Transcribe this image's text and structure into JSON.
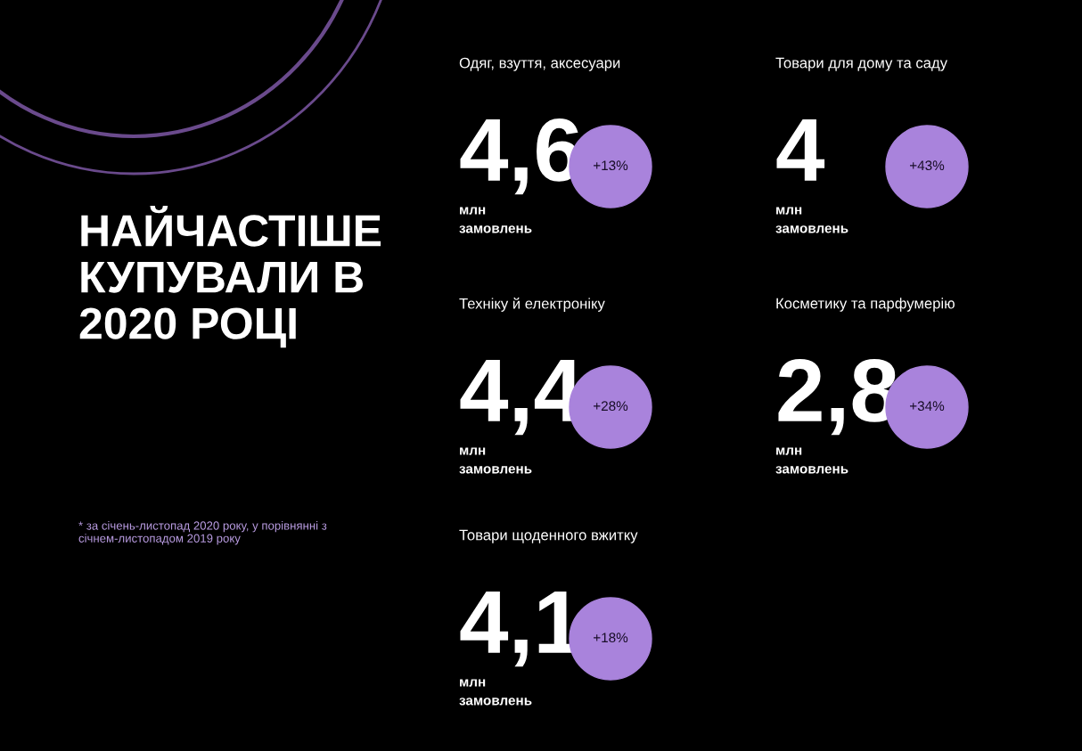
{
  "chart_data": {
    "type": "other",
    "title": "НАЙЧАСТІШЕ КУПУВАЛИ В 2020 РОЦІ",
    "ylabel": "млн замовлень",
    "categories": [
      "Одяг, взуття, аксесуари",
      "Товари для дому та саду",
      "Техніку й електроніку",
      "Косметику та парфумерію",
      "Товари щоденного вжитку"
    ],
    "values": [
      4.6,
      4,
      4.4,
      2.8,
      4.1
    ],
    "value_labels": [
      "4,6",
      "4",
      "4,4",
      "2,8",
      "4,1"
    ],
    "color": "#a983dc",
    "annotations": [
      {
        "text": "+13%",
        "x": "Одяг, взуття, аксесуари"
      },
      {
        "text": "+43%",
        "x": "Товари для дому та саду"
      },
      {
        "text": "+28%",
        "x": "Техніку й електроніку"
      },
      {
        "text": "+34%",
        "x": "Косметику та парфумерію"
      },
      {
        "text": "+18%",
        "x": "Товари щоденного вжитку"
      },
      "* за січень-листопад 2020 року, у порівнянні з січнем-листопадом 2019 року"
    ]
  }
}
